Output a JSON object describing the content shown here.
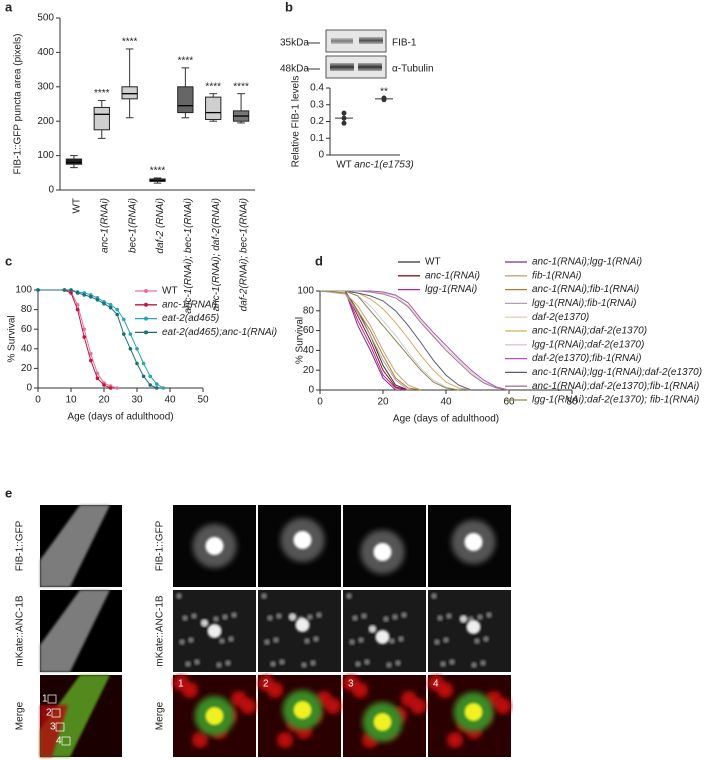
{
  "chart_data": [
    {
      "type": "box",
      "panel": "a",
      "ylabel": "FIB-1::GFP puncta area (pixels)",
      "categories": [
        "WT",
        "anc-1(RNAi)",
        "bec-1(RNAi)",
        "daf-2 (RNAi)",
        "anc-1(RNAi); bec-1(RNAi)",
        "anc-1(RNAi); daf-2(RNAi)",
        "daf-2(RNAi); bec-1(RNAi)"
      ],
      "boxes": [
        {
          "min": 65,
          "q1": 75,
          "median": 80,
          "q3": 90,
          "max": 100,
          "color": "#222222"
        },
        {
          "min": 150,
          "q1": 175,
          "median": 220,
          "q3": 240,
          "max": 260,
          "color": "#cfcfcf"
        },
        {
          "min": 210,
          "q1": 265,
          "median": 280,
          "q3": 300,
          "max": 410,
          "color": "#cfcfcf"
        },
        {
          "min": 20,
          "q1": 25,
          "median": 28,
          "q3": 32,
          "max": 35,
          "color": "#555555"
        },
        {
          "min": 210,
          "q1": 225,
          "median": 245,
          "q3": 300,
          "max": 355,
          "color": "#666666"
        },
        {
          "min": 200,
          "q1": 205,
          "median": 225,
          "q3": 270,
          "max": 280,
          "color": "#cfcfcf"
        },
        {
          "min": 195,
          "q1": 200,
          "median": 215,
          "q3": 230,
          "max": 280,
          "color": "#777777"
        }
      ],
      "annotations": [
        null,
        "****",
        "****",
        "****",
        "****",
        "****",
        "****"
      ],
      "ylim": [
        0,
        500
      ],
      "yticks": [
        0,
        100,
        200,
        300,
        400,
        500
      ]
    },
    {
      "type": "dot",
      "panel": "b",
      "ylabel": "Relative FIB-1 levels",
      "categories": [
        "WT",
        "anc-1(e1753)"
      ],
      "points": [
        [
          0.25,
          0.19,
          0.22
        ],
        [
          0.33,
          0.335,
          0.34
        ]
      ],
      "means": [
        0.22,
        0.335
      ],
      "errors": [
        0.03,
        0.005
      ],
      "annotations": [
        null,
        "**"
      ],
      "ylim": [
        0,
        0.4
      ],
      "yticks": [
        0,
        0.1,
        0.2,
        0.3,
        0.4
      ]
    },
    {
      "type": "line",
      "panel": "c",
      "xlabel": "Age (days of adulthood)",
      "ylabel": "% Survival",
      "markers": true,
      "x": [
        0,
        8,
        10,
        12,
        14,
        16,
        18,
        20,
        22,
        24,
        26,
        28,
        30,
        32,
        34,
        36,
        38
      ],
      "series": [
        {
          "name": "WT",
          "color": "#e8709a",
          "values": [
            100,
            100,
            98,
            85,
            60,
            35,
            15,
            5,
            2,
            0,
            null,
            null,
            null,
            null,
            null,
            null,
            null
          ]
        },
        {
          "name": "anc-1(RNAi)",
          "color": "#c0183c",
          "values": [
            100,
            100,
            97,
            80,
            52,
            28,
            10,
            3,
            0,
            null,
            null,
            null,
            null,
            null,
            null,
            null,
            null
          ]
        },
        {
          "name": "eat-2(ad465)",
          "color": "#2aa3b0",
          "values": [
            100,
            100,
            100,
            98,
            97,
            95,
            92,
            88,
            85,
            80,
            70,
            55,
            40,
            25,
            12,
            4,
            0
          ]
        },
        {
          "name": "eat-2(ad465);anc-1(RNAi)",
          "color": "#1a6f7a",
          "values": [
            100,
            100,
            100,
            97,
            95,
            93,
            90,
            86,
            82,
            75,
            55,
            40,
            25,
            12,
            3,
            0,
            null
          ]
        }
      ],
      "xlim": [
        0,
        50
      ],
      "xticks": [
        0,
        10,
        20,
        30,
        40,
        50
      ],
      "ylim": [
        0,
        100
      ],
      "yticks": [
        0,
        20,
        40,
        60,
        80,
        100
      ]
    },
    {
      "type": "line",
      "panel": "d",
      "xlabel": "Age (days of adulthood)",
      "ylabel": "% Survival",
      "markers": false,
      "x": [
        0,
        8,
        12,
        16,
        20,
        24,
        28,
        32,
        36,
        40,
        44,
        48,
        52,
        56,
        60
      ],
      "series": [
        {
          "name": "WT",
          "color": "#333333",
          "values": [
            100,
            100,
            80,
            55,
            25,
            5,
            0,
            null,
            null,
            null,
            null,
            null,
            null,
            null,
            null
          ]
        },
        {
          "name": "anc-1(RNAi)",
          "color": "#8b1a1a",
          "values": [
            100,
            100,
            75,
            50,
            20,
            3,
            0,
            null,
            null,
            null,
            null,
            null,
            null,
            null,
            null
          ]
        },
        {
          "name": "lgg-1(RNAi)",
          "color": "#c0208c",
          "values": [
            100,
            100,
            70,
            45,
            15,
            2,
            0,
            null,
            null,
            null,
            null,
            null,
            null,
            null,
            null
          ]
        },
        {
          "name": "anc-1(RNAi);lgg-1(RNAi)",
          "color": "#7b2d8e",
          "values": [
            100,
            100,
            65,
            40,
            12,
            0,
            null,
            null,
            null,
            null,
            null,
            null,
            null,
            null,
            null
          ]
        },
        {
          "name": "fib-1(RNAi)",
          "color": "#c8a070",
          "values": [
            100,
            98,
            85,
            65,
            40,
            18,
            5,
            0,
            null,
            null,
            null,
            null,
            null,
            null,
            null
          ]
        },
        {
          "name": "anc-1(RNAi);fib-1(RNAi)",
          "color": "#b07a30",
          "values": [
            100,
            98,
            80,
            60,
            35,
            12,
            2,
            0,
            null,
            null,
            null,
            null,
            null,
            null,
            null
          ]
        },
        {
          "name": "lgg-1(RNAi);fib-1(RNAi)",
          "color": "#b0a0b0",
          "values": [
            100,
            97,
            78,
            55,
            30,
            10,
            0,
            null,
            null,
            null,
            null,
            null,
            null,
            null,
            null
          ]
        },
        {
          "name": "daf-2(e1370)",
          "color": "#e0d2b8",
          "values": [
            100,
            100,
            100,
            99,
            98,
            95,
            85,
            70,
            55,
            42,
            30,
            18,
            8,
            3,
            0
          ]
        },
        {
          "name": "anc-1(RNAi);daf-2(e1370)",
          "color": "#d9a860",
          "values": [
            100,
            100,
            98,
            92,
            82,
            68,
            52,
            35,
            20,
            8,
            2,
            0,
            null,
            null,
            null
          ]
        },
        {
          "name": "lgg-1(RNAi);daf-2(e1370)",
          "color": "#d8c8d8",
          "values": [
            100,
            100,
            95,
            85,
            70,
            55,
            38,
            22,
            10,
            3,
            0,
            null,
            null,
            null,
            null
          ]
        },
        {
          "name": "daf-2(e1370);fib-1(RNAi)",
          "color": "#b050d0",
          "values": [
            100,
            100,
            100,
            100,
            99,
            96,
            88,
            72,
            58,
            45,
            32,
            20,
            10,
            3,
            0
          ]
        },
        {
          "name": "anc-1(RNAi);lgg-1(RNAi);daf-2(e1370)",
          "color": "#5a5a7a",
          "values": [
            100,
            100,
            98,
            95,
            90,
            80,
            65,
            48,
            30,
            15,
            5,
            0,
            null,
            null,
            null
          ]
        },
        {
          "name": "anc-1(RNAi);daf-2(e1370);fib-1(RNAi)",
          "color": "#a08090",
          "values": [
            100,
            100,
            100,
            99,
            97,
            93,
            84,
            68,
            54,
            40,
            28,
            16,
            7,
            2,
            0
          ]
        },
        {
          "name": "lgg-1(RNAi);daf-2(e1370); fib-1(RNAi)",
          "color": "#8a8a50",
          "values": [
            100,
            100,
            95,
            80,
            65,
            50,
            35,
            20,
            8,
            2,
            0,
            null,
            null,
            null,
            null
          ]
        }
      ],
      "xlim": [
        0,
        80
      ],
      "xticks": [
        0,
        20,
        40,
        60,
        80
      ],
      "ylim": [
        0,
        100
      ],
      "yticks": [
        0,
        20,
        40,
        60,
        80,
        100
      ]
    }
  ],
  "blot": {
    "size_markers": [
      "35kDa",
      "48kDa"
    ],
    "bands": [
      "FIB-1",
      "α-Tubulin"
    ]
  },
  "micrographs": {
    "panel": "e",
    "rows": [
      "FIB-1::GFP",
      "mKate::ANC-1B",
      "Merge"
    ],
    "regions": [
      "1",
      "2",
      "3",
      "4"
    ]
  }
}
